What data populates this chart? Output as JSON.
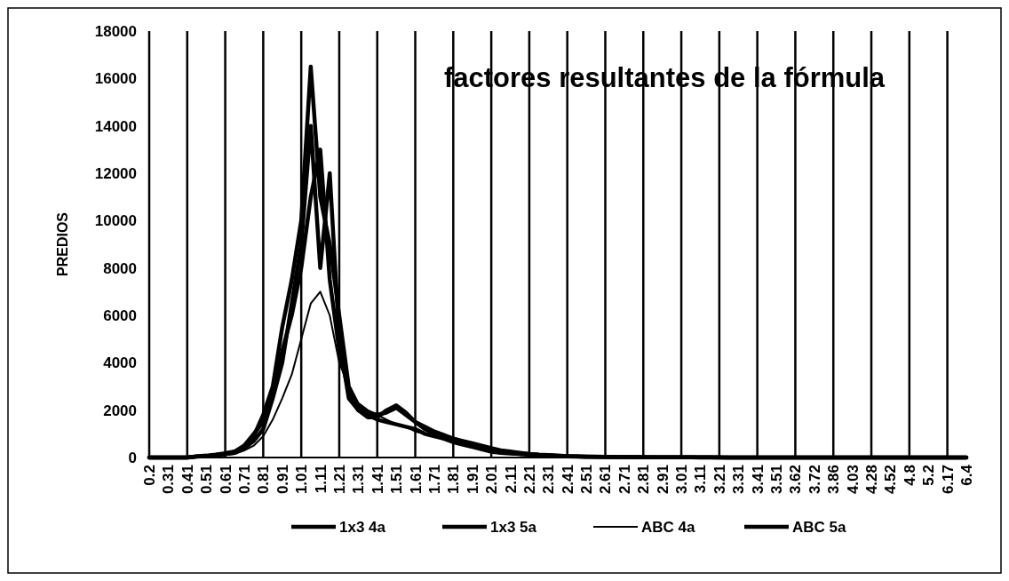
{
  "chart_data": {
    "type": "line",
    "title": "factores resultantes de la fórmula",
    "ylabel": "PREDIOS",
    "categories": [
      "0.2",
      null,
      "0.31",
      null,
      "0.41",
      null,
      "0.51",
      null,
      "0.61",
      null,
      "0.71",
      null,
      "0.81",
      null,
      "0.91",
      null,
      "1.01",
      null,
      "1.11",
      null,
      "1.21",
      null,
      "1.31",
      null,
      "1.41",
      null,
      "1.51",
      null,
      "1.61",
      null,
      "1.71",
      null,
      "1.81",
      null,
      "1.91",
      null,
      "2.01",
      null,
      "2.11",
      null,
      "2.21",
      null,
      "2.31",
      null,
      "2.41",
      null,
      "2.51",
      null,
      "2.61",
      null,
      "2.71",
      null,
      "2.81",
      null,
      "2.91",
      null,
      "3.01",
      null,
      "3.11",
      null,
      "3.21",
      null,
      "3.31",
      null,
      "3.41",
      null,
      "3.51",
      null,
      "3.62",
      null,
      "3.72",
      null,
      "3.86",
      null,
      "4.03",
      null,
      "4.28",
      null,
      "4.52",
      null,
      "4.8",
      null,
      "5.2",
      null,
      "6.17",
      null,
      "6.4"
    ],
    "series": [
      {
        "name": "1x3 4a",
        "color": "#000000",
        "values": [
          0,
          0,
          0,
          0,
          0,
          50,
          50,
          100,
          150,
          200,
          400,
          700,
          1200,
          2500,
          4000,
          6500,
          9000,
          14000,
          8000,
          12000,
          5000,
          2500,
          2000,
          1800,
          1600,
          1500,
          1400,
          1300,
          1200,
          1000,
          900,
          800,
          700,
          600,
          500,
          400,
          300,
          250,
          200,
          150,
          120,
          100,
          80,
          60,
          50,
          40,
          30,
          30,
          20,
          20,
          20,
          10,
          10,
          10,
          10,
          10,
          10,
          10,
          0,
          0,
          0,
          0,
          0,
          0,
          0,
          0,
          0,
          0,
          0,
          0,
          0,
          0,
          0,
          0,
          0,
          0,
          0,
          0,
          0,
          0,
          0,
          0,
          0,
          0,
          0,
          0,
          0
        ]
      },
      {
        "name": "1x3 5a",
        "color": "#000000",
        "values": [
          0,
          0,
          0,
          0,
          0,
          50,
          80,
          120,
          180,
          250,
          500,
          900,
          1800,
          3000,
          5500,
          7500,
          10000,
          16500,
          11000,
          9000,
          6000,
          3000,
          2200,
          1900,
          1800,
          1900,
          2100,
          1800,
          1500,
          1200,
          1000,
          900,
          800,
          700,
          600,
          500,
          400,
          300,
          250,
          200,
          150,
          120,
          100,
          80,
          60,
          50,
          40,
          40,
          30,
          30,
          20,
          20,
          20,
          10,
          10,
          10,
          10,
          10,
          10,
          10,
          10,
          0,
          0,
          0,
          0,
          0,
          0,
          0,
          0,
          0,
          0,
          0,
          0,
          0,
          0,
          0,
          0,
          0,
          0,
          0,
          0,
          0,
          0,
          0,
          0,
          0,
          0
        ]
      },
      {
        "name": "ABC 4a",
        "color": "#000000",
        "values": [
          0,
          0,
          0,
          0,
          0,
          30,
          50,
          80,
          100,
          150,
          300,
          500,
          900,
          1600,
          2500,
          3500,
          5000,
          6500,
          7000,
          6000,
          4000,
          3000,
          2300,
          2000,
          1800,
          1600,
          1400,
          1300,
          1100,
          1000,
          900,
          750,
          600,
          500,
          400,
          300,
          200,
          150,
          120,
          100,
          80,
          60,
          50,
          40,
          30,
          20,
          20,
          10,
          10,
          10,
          0,
          0,
          0,
          0,
          0,
          0,
          0,
          0,
          0,
          0,
          0,
          0,
          0,
          0,
          0,
          0,
          0,
          0,
          0,
          0,
          0,
          0,
          0,
          0,
          0,
          0,
          0,
          0,
          0,
          0,
          0,
          0,
          0,
          0,
          0,
          0,
          0
        ]
      },
      {
        "name": "ABC 5a",
        "color": "#000000",
        "values": [
          0,
          0,
          0,
          0,
          0,
          40,
          60,
          100,
          150,
          250,
          500,
          1000,
          1500,
          2800,
          4500,
          6000,
          8000,
          11000,
          13000,
          7500,
          4500,
          2800,
          2000,
          1700,
          1700,
          2000,
          2200,
          1900,
          1500,
          1300,
          1100,
          950,
          800,
          650,
          550,
          450,
          350,
          280,
          220,
          180,
          140,
          110,
          90,
          70,
          60,
          50,
          40,
          30,
          30,
          20,
          20,
          20,
          10,
          10,
          10,
          10,
          10,
          10,
          10,
          10,
          0,
          0,
          0,
          0,
          0,
          0,
          0,
          0,
          0,
          0,
          0,
          0,
          0,
          0,
          0,
          0,
          0,
          0,
          0,
          0,
          0,
          0,
          0,
          0,
          0,
          0,
          0
        ]
      }
    ],
    "ylim": [
      0,
      18000
    ],
    "yticks": [
      0,
      2000,
      4000,
      6000,
      8000,
      10000,
      12000,
      14000,
      16000,
      18000
    ],
    "grid": "x",
    "legend": "bottom",
    "line_style": "solid",
    "marker": "none"
  }
}
